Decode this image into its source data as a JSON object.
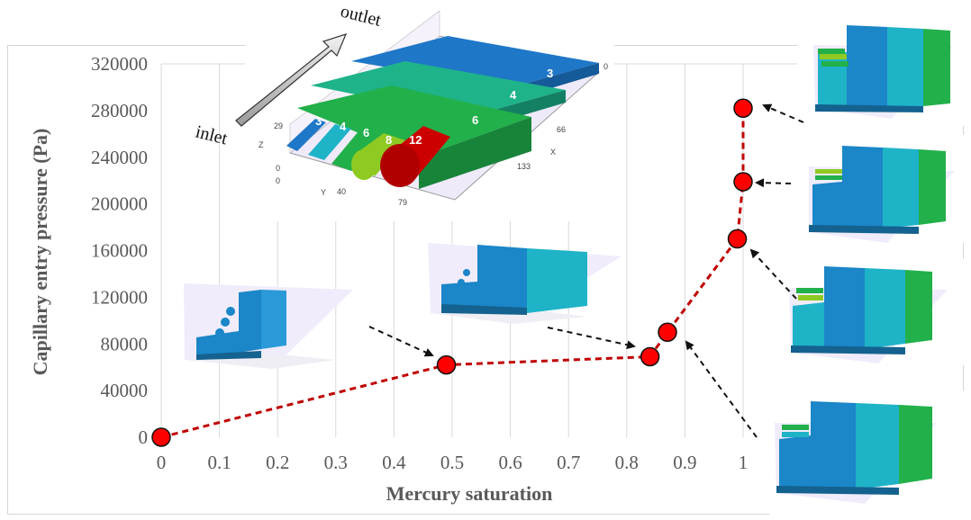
{
  "chart_data": {
    "type": "scatter",
    "xlabel": "Mercury saturation",
    "ylabel": "Capillary entry pressure (Pa)",
    "xlim": [
      0,
      1
    ],
    "ylim": [
      0,
      320000
    ],
    "x_ticks": [
      "0",
      "0.1",
      "0.2",
      "0.3",
      "0.4",
      "0.5",
      "0.6",
      "0.7",
      "0.8",
      "0.9",
      "1"
    ],
    "y_ticks": [
      "0",
      "40000",
      "80000",
      "120000",
      "160000",
      "200000",
      "240000",
      "280000",
      "320000"
    ],
    "grid": "vertical",
    "series": [
      {
        "color": "#c00000",
        "line_style": "dashed",
        "marker": "circle",
        "points": [
          {
            "x": 0.0,
            "y": 0
          },
          {
            "x": 0.49,
            "y": 62000
          },
          {
            "x": 0.84,
            "y": 69000
          },
          {
            "x": 0.87,
            "y": 90000
          },
          {
            "x": 0.99,
            "y": 170000
          },
          {
            "x": 1.0,
            "y": 219000
          },
          {
            "x": 1.0,
            "y": 282000
          }
        ]
      }
    ]
  },
  "geometry_inset": {
    "labels": {
      "outlet": "outlet",
      "inlet": "inlet"
    },
    "tube_numbers": [
      "3",
      "4",
      "6",
      "8",
      "12"
    ],
    "slab_numbers": [
      "3",
      "4",
      "6"
    ],
    "axis_letters": {
      "x": "X",
      "y": "Y",
      "z": "Z"
    },
    "x_ticks": [
      "0",
      "66",
      "133"
    ],
    "y_ticks": [
      "0",
      "40",
      "79"
    ],
    "z_ticks": [
      "0",
      "29"
    ]
  },
  "colors": {
    "curve": "#c00000",
    "marker_fill": "#ff0000",
    "slab_3": "#1f77c8",
    "slab_4": "#1fb3c8",
    "slab_6": "#22b04a",
    "tube_8": "#8fca23",
    "tube_12": "#cc0000"
  }
}
